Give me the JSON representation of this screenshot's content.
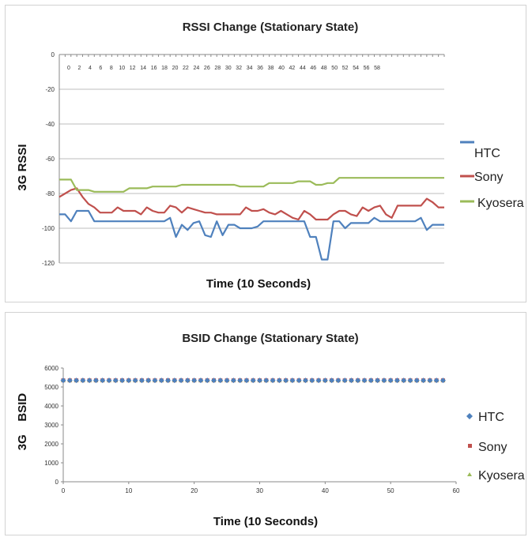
{
  "chart_data": [
    {
      "type": "line",
      "title": "RSSI Change (Stationary State)",
      "xlabel": "Time (10 Seconds)",
      "ylabel": "3G RSSI",
      "ylim": [
        -120,
        0
      ],
      "yticks": [
        0,
        -20,
        -40,
        -60,
        -80,
        -100,
        -120
      ],
      "xticks_top": [
        0,
        2,
        4,
        6,
        8,
        10,
        12,
        14,
        16,
        18,
        20,
        22,
        24,
        26,
        28,
        30,
        32,
        34,
        36,
        38,
        40,
        42,
        44,
        46,
        48,
        50,
        52,
        54,
        56,
        58
      ],
      "x_axis_position": "top",
      "grid": true,
      "legend_position": "right",
      "series": [
        {
          "name": "HTC",
          "color": "#4f81bd",
          "values": [
            -92,
            -92,
            -96,
            -90,
            -90,
            -90,
            -96,
            -96,
            -96,
            -96,
            -96,
            -96,
            -96,
            -96,
            -96,
            -96,
            -96,
            -96,
            -96,
            -94,
            -105,
            -98,
            -101,
            -97,
            -96,
            -104,
            -105,
            -96,
            -104,
            -98,
            -98,
            -100,
            -100,
            -100,
            -99,
            -96,
            -96,
            -96,
            -96,
            -96,
            -96,
            -96,
            -96,
            -105,
            -105,
            -118,
            -118,
            -96,
            -96,
            -100,
            -97,
            -97,
            -97,
            -97,
            -94,
            -96,
            -96,
            -96,
            -96,
            -96,
            -96,
            -96,
            -94,
            -101,
            -98,
            -98,
            -98
          ]
        },
        {
          "name": "Sony",
          "color": "#c0504d",
          "values": [
            -82,
            -80,
            -78,
            -77,
            -82,
            -86,
            -88,
            -91,
            -91,
            -91,
            -88,
            -90,
            -90,
            -90,
            -92,
            -88,
            -90,
            -91,
            -91,
            -87,
            -88,
            -91,
            -88,
            -89,
            -90,
            -91,
            -91,
            -92,
            -92,
            -92,
            -92,
            -92,
            -88,
            -90,
            -90,
            -89,
            -91,
            -92,
            -90,
            -92,
            -94,
            -95,
            -90,
            -92,
            -95,
            -95,
            -95,
            -92,
            -90,
            -90,
            -92,
            -93,
            -88,
            -90,
            -88,
            -87,
            -92,
            -94,
            -87,
            -87,
            -87,
            -87,
            -87,
            -83,
            -85,
            -88,
            -88
          ]
        },
        {
          "name": "Kyosera",
          "color": "#9bbb59",
          "values": [
            -72,
            -72,
            -72,
            -78,
            -78,
            -78,
            -79,
            -79,
            -79,
            -79,
            -79,
            -79,
            -77,
            -77,
            -77,
            -77,
            -76,
            -76,
            -76,
            -76,
            -76,
            -75,
            -75,
            -75,
            -75,
            -75,
            -75,
            -75,
            -75,
            -75,
            -75,
            -76,
            -76,
            -76,
            -76,
            -76,
            -74,
            -74,
            -74,
            -74,
            -74,
            -73,
            -73,
            -73,
            -75,
            -75,
            -74,
            -74,
            -71,
            -71,
            -71,
            -71,
            -71,
            -71,
            -71,
            -71,
            -71,
            -71,
            -71,
            -71,
            -71,
            -71,
            -71,
            -71,
            -71,
            -71,
            -71
          ]
        }
      ]
    },
    {
      "type": "scatter",
      "title": "BSID Change (Stationary State)",
      "xlabel": "Time (10 Seconds)",
      "ylabel": "3G    BSID",
      "xlim": [
        0,
        60
      ],
      "ylim": [
        0,
        6000
      ],
      "xticks": [
        0,
        10,
        20,
        30,
        40,
        50,
        60
      ],
      "yticks": [
        0,
        1000,
        2000,
        3000,
        4000,
        5000,
        6000
      ],
      "grid": false,
      "legend_position": "right",
      "x": [
        0,
        1,
        2,
        3,
        4,
        5,
        6,
        7,
        8,
        9,
        10,
        11,
        12,
        13,
        14,
        15,
        16,
        17,
        18,
        19,
        20,
        21,
        22,
        23,
        24,
        25,
        26,
        27,
        28,
        29,
        30,
        31,
        32,
        33,
        34,
        35,
        36,
        37,
        38,
        39,
        40,
        41,
        42,
        43,
        44,
        45,
        46,
        47,
        48,
        49,
        50,
        51,
        52,
        53,
        54,
        55,
        56,
        57,
        58
      ],
      "series": [
        {
          "name": "HTC",
          "color": "#4f81bd",
          "marker": "diamond",
          "constant_value": 5350
        },
        {
          "name": "Sony",
          "color": "#c0504d",
          "marker": "square",
          "constant_value": 5350
        },
        {
          "name": "Kyosera",
          "color": "#9bbb59",
          "marker": "triangle",
          "constant_value": 5350
        }
      ]
    }
  ]
}
